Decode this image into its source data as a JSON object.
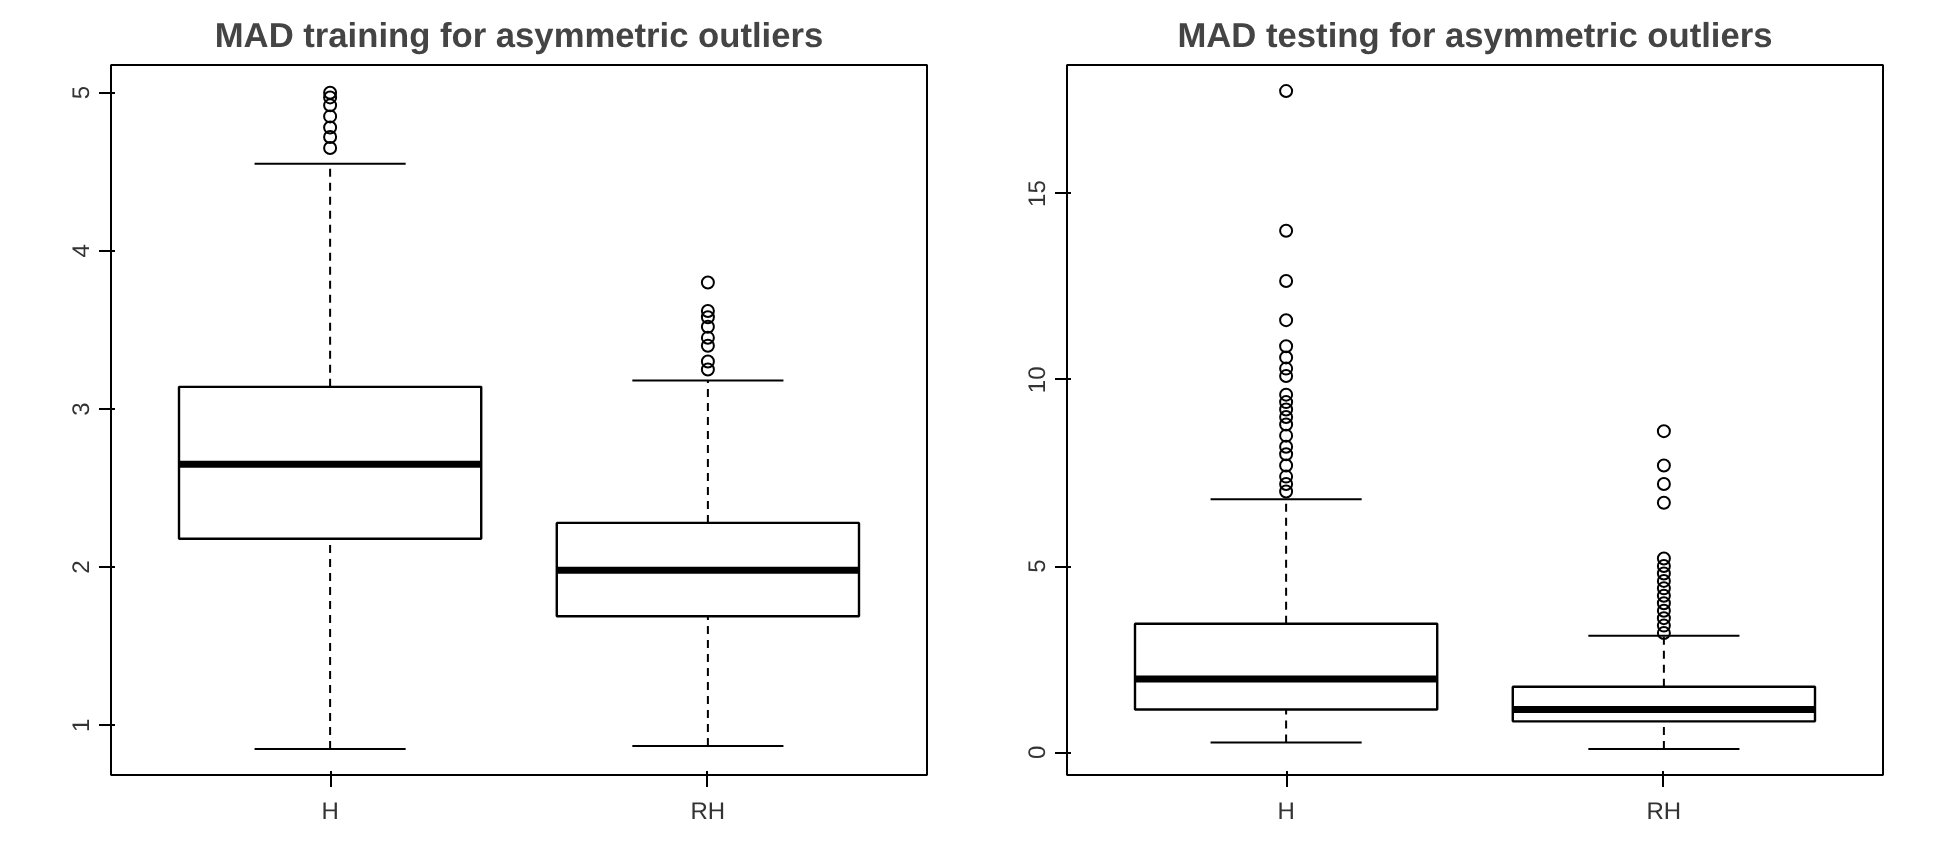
{
  "chart_data": [
    {
      "type": "box",
      "title": "MAD training for asymmetric outliers",
      "categories": [
        "H",
        "RH"
      ],
      "ylim": [
        0.686,
        5.175
      ],
      "yticks": [
        1,
        2,
        3,
        4,
        5
      ],
      "boxes": [
        {
          "low": 0.85,
          "q1": 2.18,
          "median": 2.65,
          "q3": 3.14,
          "high": 4.55,
          "outliers": [
            4.65,
            4.72,
            4.78,
            4.85,
            4.92,
            4.97,
            5.0
          ]
        },
        {
          "low": 0.87,
          "q1": 1.69,
          "median": 1.98,
          "q3": 2.28,
          "high": 3.18,
          "outliers": [
            3.25,
            3.3,
            3.4,
            3.45,
            3.52,
            3.58,
            3.62,
            3.8
          ]
        }
      ]
    },
    {
      "type": "box",
      "title": "MAD testing for asymmetric outliers",
      "categories": [
        "H",
        "RH"
      ],
      "ylim": [
        -0.61,
        18.45
      ],
      "yticks": [
        0,
        5,
        10,
        15
      ],
      "boxes": [
        {
          "low": 0.26,
          "q1": 1.15,
          "median": 1.97,
          "q3": 3.45,
          "high": 6.79,
          "outliers": [
            7.0,
            7.2,
            7.4,
            7.7,
            8.0,
            8.2,
            8.5,
            8.8,
            9.0,
            9.2,
            9.4,
            9.6,
            10.1,
            10.3,
            10.6,
            10.9,
            11.6,
            12.65,
            14.0,
            17.75
          ]
        },
        {
          "low": 0.09,
          "q1": 0.83,
          "median": 1.15,
          "q3": 1.76,
          "high": 3.13,
          "outliers": [
            3.2,
            3.4,
            3.6,
            3.8,
            4.0,
            4.2,
            4.4,
            4.6,
            4.8,
            5.0,
            5.2,
            6.7,
            7.2,
            7.7,
            8.62
          ]
        }
      ]
    }
  ]
}
